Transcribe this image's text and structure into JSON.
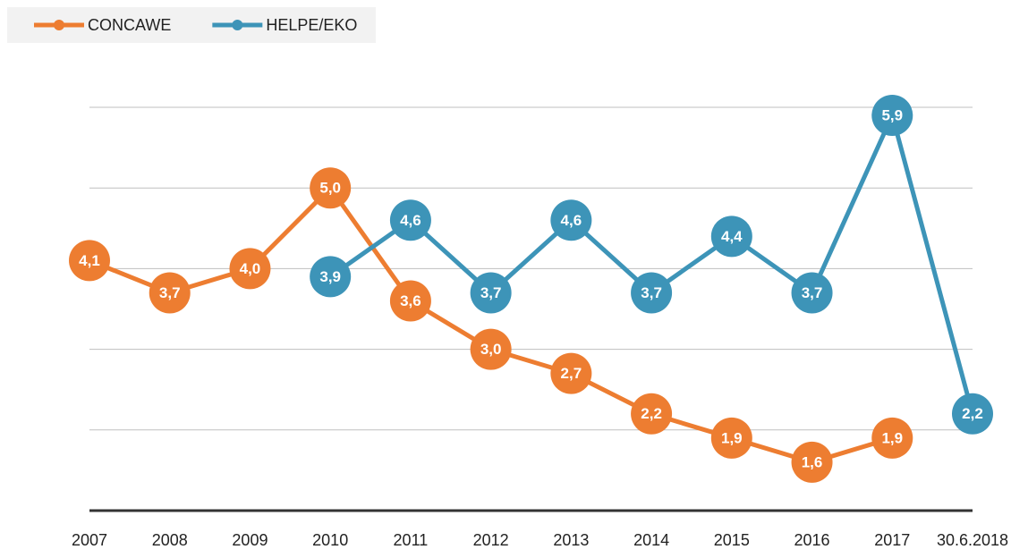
{
  "chart_data": {
    "type": "line",
    "categories": [
      "2007",
      "2008",
      "2009",
      "2010",
      "2011",
      "2012",
      "2013",
      "2014",
      "2015",
      "2016",
      "2017",
      "30.6.2018"
    ],
    "series": [
      {
        "name": "CONCAWE",
        "color": "#ed7d31",
        "values": [
          4.1,
          3.7,
          4.0,
          5.0,
          3.6,
          3.0,
          2.7,
          2.2,
          1.9,
          1.6,
          1.9,
          null
        ],
        "value_labels": [
          "4,1",
          "3,7",
          "4,0",
          "5,0",
          "3,6",
          "3,0",
          "2,7",
          "2,2",
          "1,9",
          "1,6",
          "1,9",
          null
        ]
      },
      {
        "name": "HELPE/EKO",
        "color": "#3d94b8",
        "values": [
          null,
          null,
          null,
          3.9,
          4.6,
          3.7,
          4.6,
          3.7,
          4.4,
          3.7,
          5.9,
          2.2
        ],
        "value_labels": [
          null,
          null,
          null,
          "3,9",
          "4,6",
          "3,7",
          "4,6",
          "3,7",
          "4,4",
          "3,7",
          "5,9",
          "2,2"
        ]
      }
    ],
    "ylim": [
      1,
      6
    ],
    "yticks": [
      1,
      2,
      3,
      4,
      5,
      6
    ],
    "show_ytick_labels": false,
    "grid": true,
    "legend": "top-left"
  }
}
